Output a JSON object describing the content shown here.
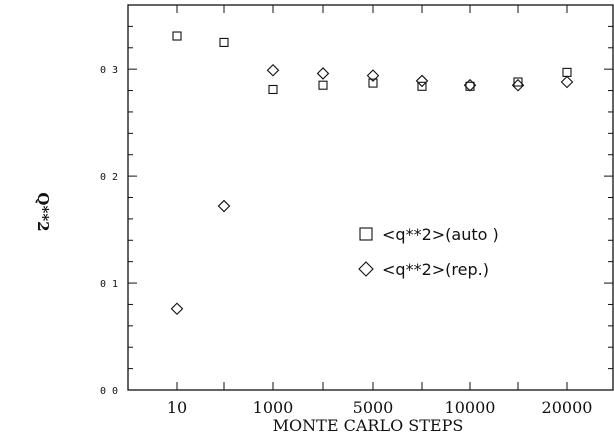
{
  "chart_data": {
    "type": "scatter",
    "xlabel": "MONTE CARLO STEPS",
    "ylabel": "Q**2",
    "ylim": [
      0,
      0.36
    ],
    "y_ticks": [
      "0 0",
      "0 1",
      "0 2",
      "0 3"
    ],
    "x_ticks": [
      "10",
      "1000",
      "5000",
      "10000",
      "20000"
    ],
    "x_tick_values": [
      10,
      1000,
      5000,
      10000,
      20000
    ],
    "grid": false,
    "legend_position": "center-right",
    "series": [
      {
        "name": "<q**2>(auto )",
        "marker": "square",
        "x": [
          10,
          100,
          1000,
          2000,
          5000,
          7000,
          10000,
          15000,
          20000
        ],
        "y": [
          0.331,
          0.325,
          0.281,
          0.285,
          0.287,
          0.284,
          0.284,
          0.288,
          0.297
        ]
      },
      {
        "name": "<q**2>(rep.)",
        "marker": "diamond",
        "x": [
          10,
          100,
          1000,
          2000,
          5000,
          7000,
          10000,
          15000,
          20000
        ],
        "y": [
          0.076,
          0.172,
          0.299,
          0.296,
          0.294,
          0.289,
          0.285,
          0.285,
          0.288
        ]
      }
    ]
  }
}
